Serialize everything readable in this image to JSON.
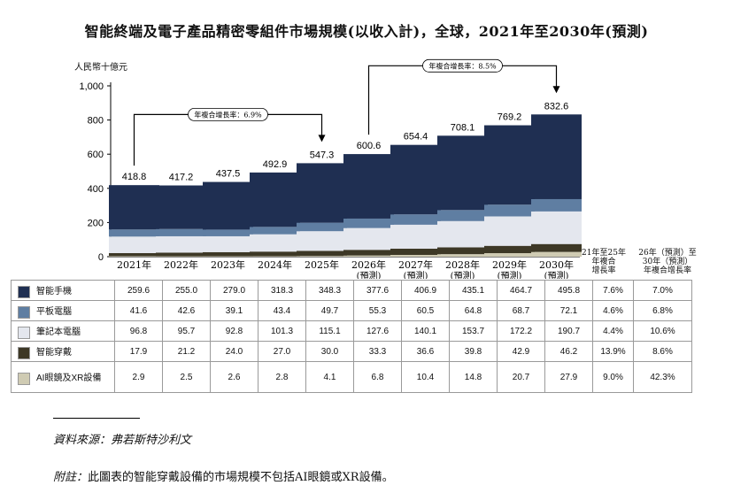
{
  "title": "智能終端及電子產品精密零組件市場規模(以收入計)，全球，2021年至2030年(預測)",
  "chart_data": {
    "type": "bar",
    "stacked": true,
    "ylabel": "人民幣十億元",
    "ylim": [
      0,
      1000
    ],
    "yticks": [
      0,
      200,
      400,
      600,
      800,
      1000
    ],
    "ytick_labels": [
      "0",
      "200",
      "400",
      "600",
      "800",
      "1,000"
    ],
    "categories": [
      "2021年",
      "2022年",
      "2023年",
      "2024年",
      "2025年",
      "2026年",
      "2027年",
      "2028年",
      "2029年",
      "2030年"
    ],
    "category_sub": [
      "",
      "",
      "",
      "",
      "",
      "(預測)",
      "(預測)",
      "(預測)",
      "(預測)",
      "(預測)"
    ],
    "totals": [
      "418.8",
      "417.2",
      "437.5",
      "492.9",
      "547.3",
      "600.6",
      "654.4",
      "708.1",
      "769.2",
      "832.6"
    ],
    "series": [
      {
        "name": "AI眼鏡及XR設備",
        "color": "#cfcbb3",
        "values": [
          2.9,
          2.5,
          2.6,
          2.8,
          4.1,
          6.8,
          10.4,
          14.8,
          20.7,
          27.9
        ],
        "labels": [
          "2.9",
          "2.5",
          "2.6",
          "2.8",
          "4.1",
          "6.8",
          "10.4",
          "14.8",
          "20.7",
          "27.9"
        ],
        "cagr_21_25": "9.0%",
        "cagr_26_30": "42.3%"
      },
      {
        "name": "智能穿戴",
        "color": "#3d3826",
        "values": [
          17.9,
          21.2,
          24.0,
          27.0,
          30.0,
          33.3,
          36.6,
          39.8,
          42.9,
          46.2
        ],
        "labels": [
          "17.9",
          "21.2",
          "24.0",
          "27.0",
          "30.0",
          "33.3",
          "36.6",
          "39.8",
          "42.9",
          "46.2"
        ],
        "cagr_21_25": "13.9%",
        "cagr_26_30": "8.6%"
      },
      {
        "name": "筆記本電腦",
        "color": "#e4e7ee",
        "values": [
          96.8,
          95.7,
          92.8,
          101.3,
          115.1,
          127.6,
          140.1,
          153.7,
          172.2,
          190.7
        ],
        "labels": [
          "96.8",
          "95.7",
          "92.8",
          "101.3",
          "115.1",
          "127.6",
          "140.1",
          "153.7",
          "172.2",
          "190.7"
        ],
        "cagr_21_25": "4.4%",
        "cagr_26_30": "10.6%"
      },
      {
        "name": "平板電腦",
        "color": "#5f7ea2",
        "values": [
          41.6,
          42.6,
          39.1,
          43.4,
          49.7,
          55.3,
          60.5,
          64.8,
          68.7,
          72.1
        ],
        "labels": [
          "41.6",
          "42.6",
          "39.1",
          "43.4",
          "49.7",
          "55.3",
          "60.5",
          "64.8",
          "68.7",
          "72.1"
        ],
        "cagr_21_25": "4.6%",
        "cagr_26_30": "6.8%"
      },
      {
        "name": "智能手機",
        "color": "#1f2f52",
        "values": [
          259.6,
          255.0,
          279.0,
          318.3,
          348.3,
          377.6,
          406.9,
          435.1,
          464.7,
          495.8
        ],
        "labels": [
          "259.6",
          "255.0",
          "279.0",
          "318.3",
          "348.3",
          "377.6",
          "406.9",
          "435.1",
          "464.7",
          "495.8"
        ],
        "cagr_21_25": "7.6%",
        "cagr_26_30": "7.0%"
      }
    ],
    "table_order": [
      "智能手機",
      "平板電腦",
      "筆記本電腦",
      "智能穿戴",
      "AI眼鏡及XR設備"
    ],
    "annotations": [
      {
        "text": "年複合增長率：6.9%",
        "from": "2021年",
        "to": "2025年"
      },
      {
        "text": "年複合增長率：8.5%",
        "from": "2026年",
        "to": "2030年"
      }
    ]
  },
  "cagr_headers": {
    "h1": [
      "21年至25年",
      "年複合",
      "增長率"
    ],
    "h2": [
      "26年（預測）至",
      "30年（預測）",
      "年複合增長率"
    ]
  },
  "source": "資料來源：弗若斯特沙利文",
  "note_prefix": "附註：",
  "note_text": "此圖表的智能穿戴設備的市場規模不包括AI眼鏡或XR設備。"
}
